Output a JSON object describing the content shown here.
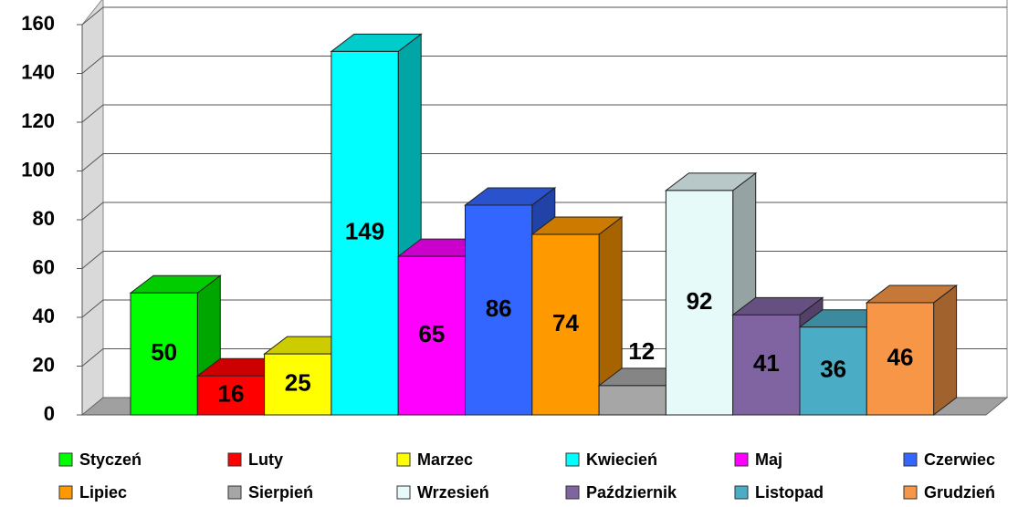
{
  "chart_data": {
    "type": "bar3d",
    "series": [
      {
        "name": "Styczeń",
        "color": "#00ff00",
        "values": [
          50
        ]
      },
      {
        "name": "Luty",
        "color": "#ff0000",
        "values": [
          16
        ]
      },
      {
        "name": "Marzec",
        "color": "#ffff00",
        "values": [
          25
        ]
      },
      {
        "name": "Kwiecień",
        "color": "#00ffff",
        "values": [
          149
        ]
      },
      {
        "name": "Maj",
        "color": "#ff00ff",
        "values": [
          65
        ]
      },
      {
        "name": "Czerwiec",
        "color": "#3366ff",
        "values": [
          86
        ]
      },
      {
        "name": "Lipiec",
        "color": "#ff9900",
        "values": [
          74
        ]
      },
      {
        "name": "Sierpień",
        "color": "#a6a6a6",
        "values": [
          12
        ]
      },
      {
        "name": "Wrzesień",
        "color": "#e6fafa",
        "values": [
          92
        ]
      },
      {
        "name": "Październik",
        "color": "#8064a2",
        "values": [
          41
        ]
      },
      {
        "name": "Listopad",
        "color": "#4bacc6",
        "values": [
          36
        ]
      },
      {
        "name": "Grudzień",
        "color": "#f79646",
        "values": [
          46
        ]
      }
    ],
    "ylim": [
      0,
      160
    ],
    "yticks": [
      0,
      20,
      40,
      60,
      80,
      100,
      120,
      140,
      160
    ],
    "grid": true
  }
}
